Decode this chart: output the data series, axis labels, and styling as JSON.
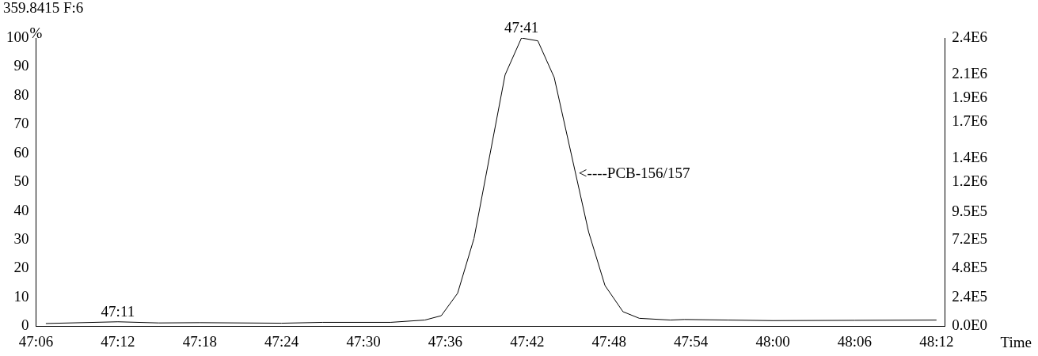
{
  "chart_data": {
    "type": "line",
    "title": "359.8415 F:6",
    "xlabel": "Time",
    "ylabel": "%",
    "x": [
      47.112,
      47.2,
      47.25,
      47.3,
      47.4,
      47.45,
      47.533,
      47.575,
      47.595,
      47.615,
      47.635,
      47.673,
      47.693,
      47.713,
      47.733,
      47.775,
      47.795,
      47.817,
      47.837,
      47.875,
      47.892,
      47.945,
      48.0,
      48.1,
      48.2
    ],
    "series": [
      {
        "color": "#000000",
        "values": [
          0.9,
          1.5,
          1.1,
          1.2,
          1.0,
          1.3,
          1.3,
          2.1,
          3.6,
          11.4,
          30.4,
          87.2,
          100,
          99.0,
          86.3,
          32.7,
          14.1,
          5.0,
          2.7,
          2.1,
          2.3,
          2.1,
          1.9,
          2.0,
          2.1
        ]
      }
    ],
    "xlim": [
      47.1,
      48.21
    ],
    "xticks": [
      {
        "value": 47.1,
        "label": "47:06"
      },
      {
        "value": 47.2,
        "label": "47:12"
      },
      {
        "value": 47.3,
        "label": "47:18"
      },
      {
        "value": 47.4,
        "label": "47:24"
      },
      {
        "value": 47.5,
        "label": "47:30"
      },
      {
        "value": 47.6,
        "label": "47:36"
      },
      {
        "value": 47.7,
        "label": "47:42"
      },
      {
        "value": 47.8,
        "label": "47:48"
      },
      {
        "value": 47.9,
        "label": "47:54"
      },
      {
        "value": 48.0,
        "label": "48:00"
      },
      {
        "value": 48.1,
        "label": "48:06"
      },
      {
        "value": 48.2,
        "label": "48:12"
      }
    ],
    "ylim": [
      0,
      100
    ],
    "yticks": [
      0,
      10,
      20,
      30,
      40,
      50,
      60,
      70,
      80,
      90,
      100
    ],
    "y2lim": [
      0,
      2400000
    ],
    "y2ticks": [
      {
        "value": 0,
        "label": "0.0E0"
      },
      {
        "value": 240000,
        "label": "2.4E5"
      },
      {
        "value": 480000,
        "label": "4.8E5"
      },
      {
        "value": 720000,
        "label": "7.2E5"
      },
      {
        "value": 950000,
        "label": "9.5E5"
      },
      {
        "value": 1200000,
        "label": "1.2E6"
      },
      {
        "value": 1400000,
        "label": "1.4E6"
      },
      {
        "value": 1700000,
        "label": "1.7E6"
      },
      {
        "value": 1900000,
        "label": "1.9E6"
      },
      {
        "value": 2100000,
        "label": "2.1E6"
      },
      {
        "value": 2400000,
        "label": "2.4E6"
      }
    ],
    "annotations": [
      {
        "text": "47:41",
        "x": 47.693,
        "y": 100
      },
      {
        "text": "47:11",
        "x": 47.2,
        "y": 1.5
      },
      {
        "text": "<----PCB-156/157",
        "x": 47.759,
        "y": 52.7
      }
    ],
    "grid": false,
    "legend": false,
    "marker": "none",
    "line_style": "solid"
  }
}
